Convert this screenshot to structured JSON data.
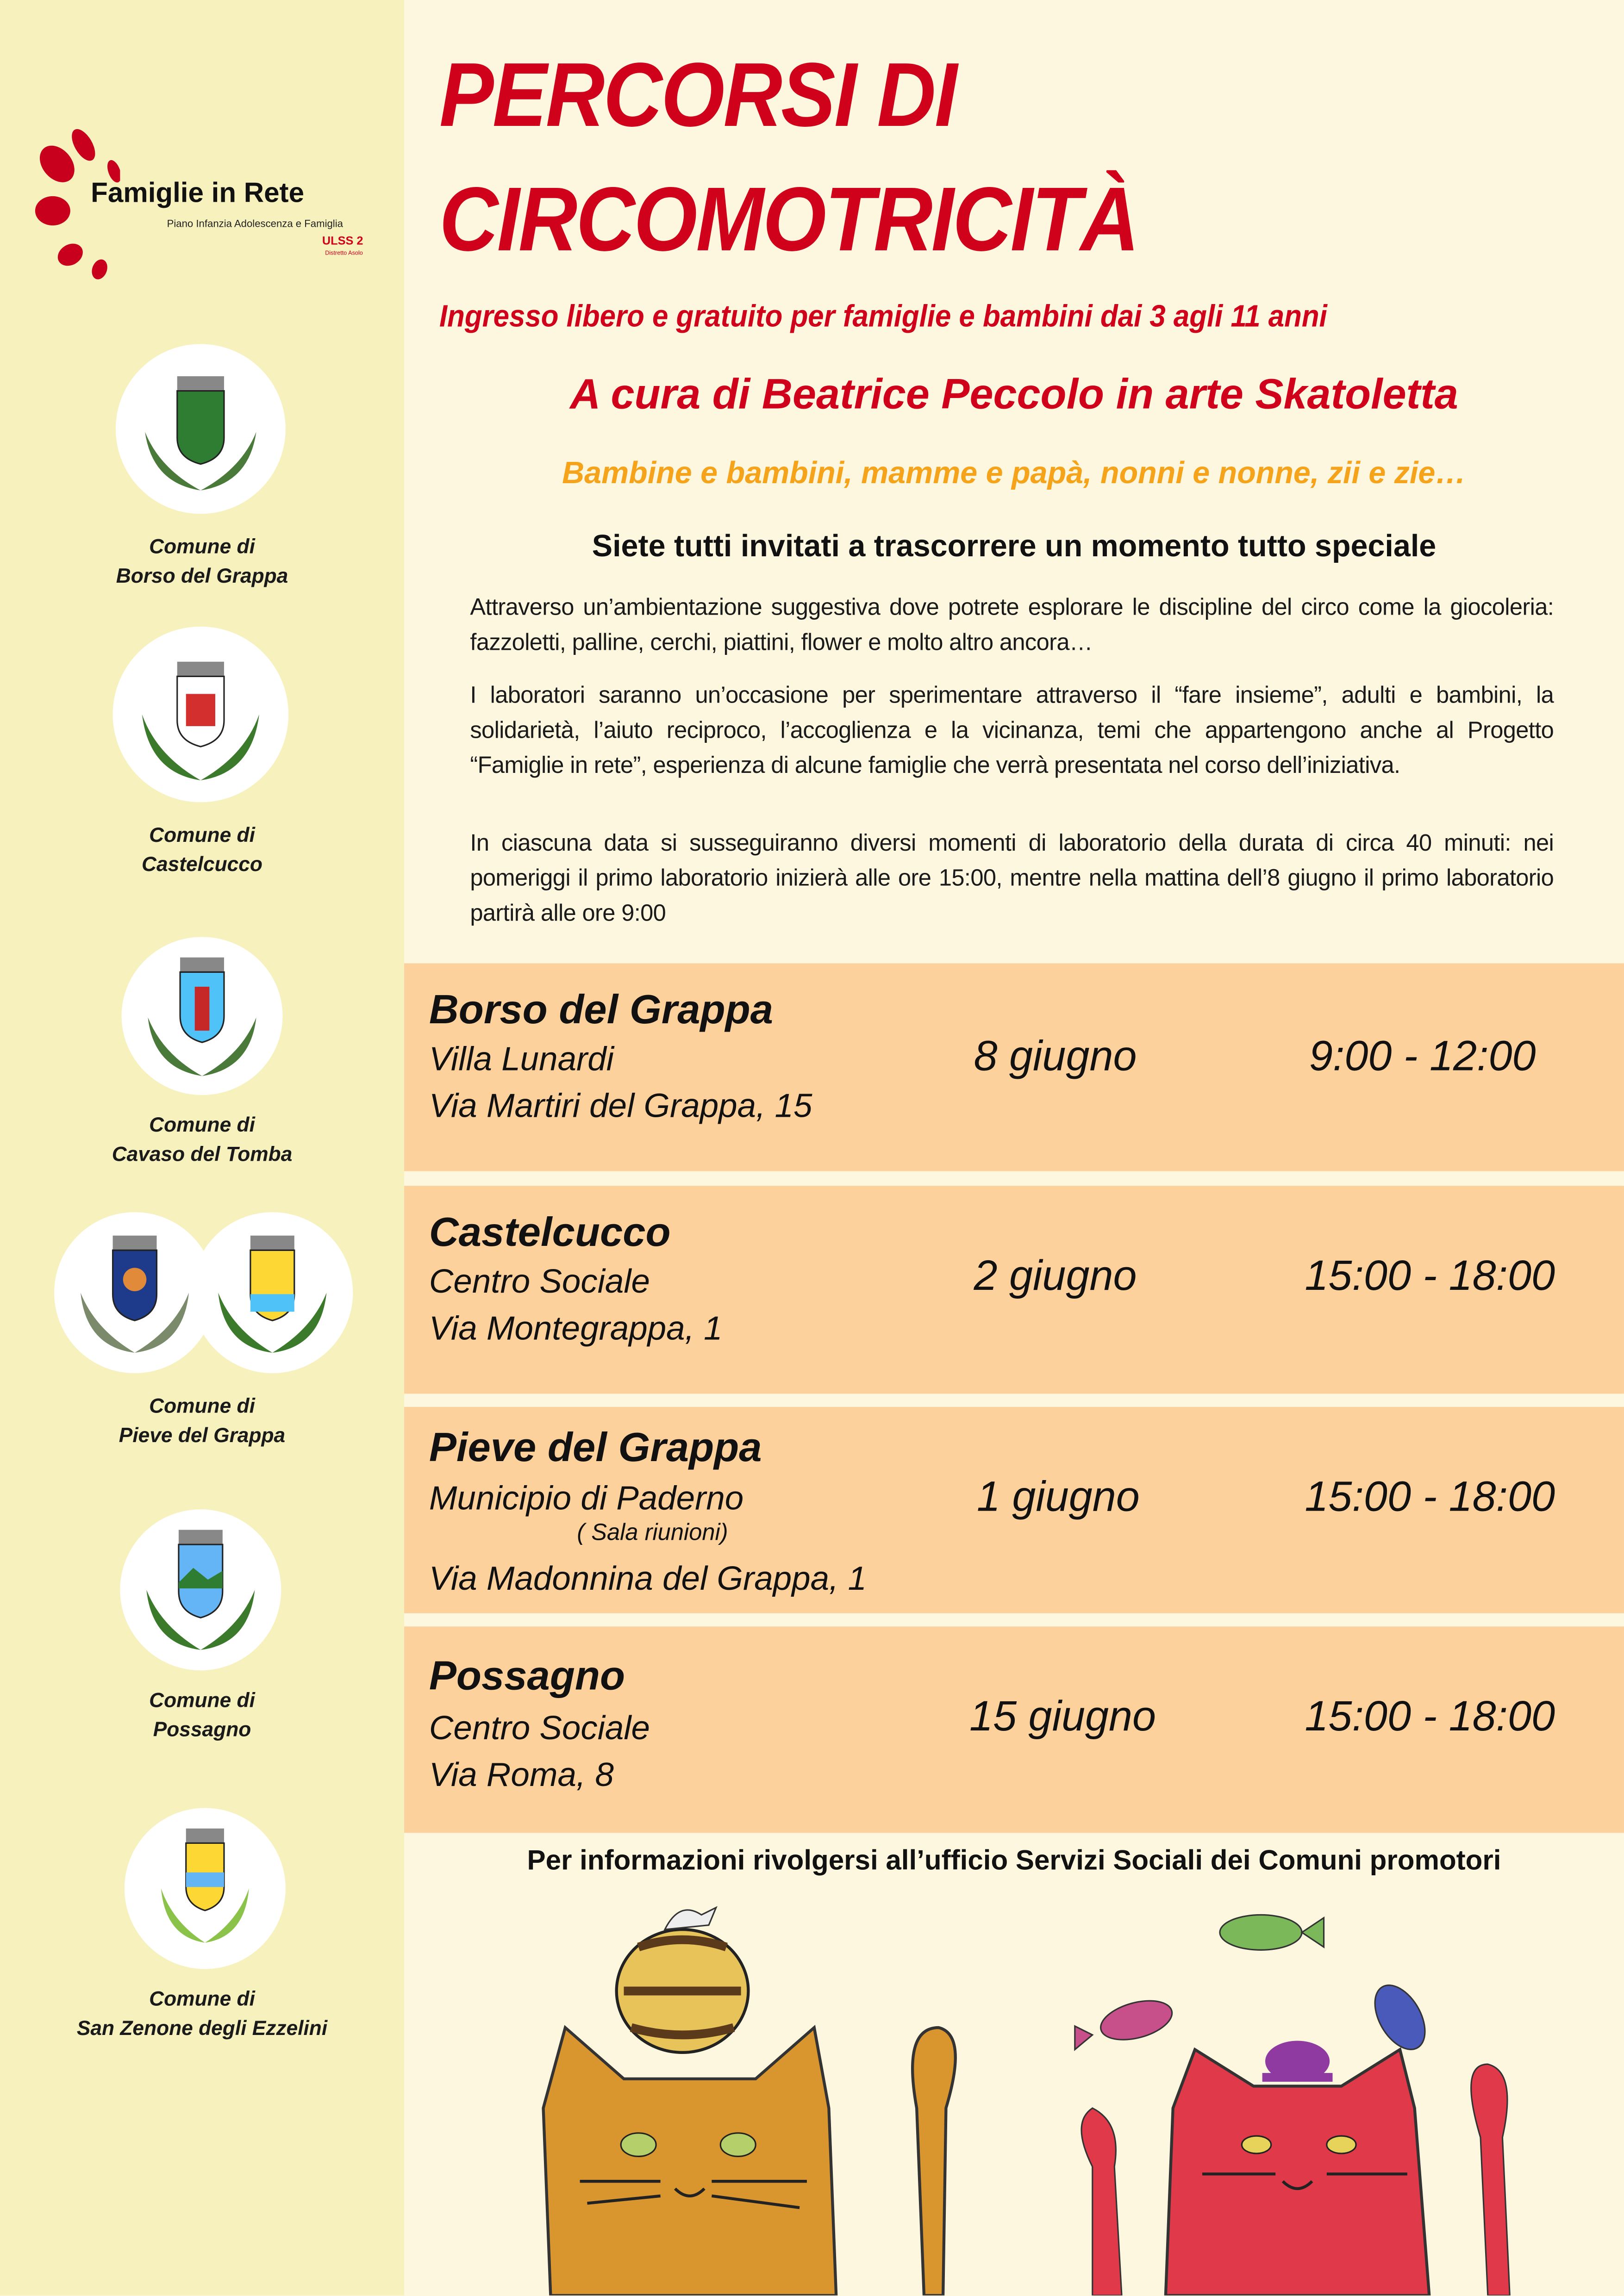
{
  "logo": {
    "name": "Famiglie in Rete",
    "tagline": "Piano Infanzia Adolescenza e Famiglia",
    "org": "ULSS 2",
    "district": "Distretto Asolo"
  },
  "municipalities": [
    {
      "label_prefix": "Comune di",
      "name": "Borso del Grappa"
    },
    {
      "label_prefix": "Comune di",
      "name": "Castelcucco"
    },
    {
      "label_prefix": "Comune di",
      "name": "Cavaso del Tomba"
    },
    {
      "label_prefix": "Comune di",
      "name": "Pieve del Grappa"
    },
    {
      "label_prefix": "Comune di",
      "name": "Possagno"
    },
    {
      "label_prefix": "Comune di",
      "name": "San Zenone degli Ezzelini"
    }
  ],
  "header": {
    "title_line1": "PERCORSI DI",
    "title_line2": "CIRCOMOTRICITÀ",
    "subtitle": "Ingresso libero e gratuito per famiglie e bambini dai 3 agli 11 anni",
    "curator": "A cura di Beatrice Peccolo in arte Skatoletta",
    "audience": "Bambine e bambini, mamme e papà, nonni e nonne, zii e zie…",
    "invite": "Siete tutti invitati a trascorrere un momento tutto speciale"
  },
  "paragraphs": [
    "Attraverso un’ambientazione suggestiva dove potrete esplorare le discipline del circo come la giocoleria: fazzoletti, palline, cerchi, piattini, flower e molto altro ancora…",
    "I laboratori saranno un’occasione per sperimentare attraverso il “fare insieme”, adulti e bambini, la solidarietà, l’aiuto reciproco, l’accoglienza e la vicinanza, temi che appartengono anche al Progetto “Famiglie in rete”, esperienza di alcune famiglie che verrà presentata nel corso dell’iniziativa.",
    "In ciascuna data si susseguiranno diversi momenti di laboratorio della durata di circa 40 minuti: nei pomeriggi il primo laboratorio inizierà alle ore 15:00, mentre nella mattina dell’8 giugno il primo laboratorio partirà alle ore 9:00"
  ],
  "events": [
    {
      "town": "Borso del Grappa",
      "venue": "Villa Lunardi",
      "note": "",
      "address": "Via Martiri del Grappa, 15",
      "date": "8 giugno",
      "time": "9:00 - 12:00"
    },
    {
      "town": "Castelcucco",
      "venue": "Centro Sociale",
      "note": "",
      "address": "Via Montegrappa, 1",
      "date": "2 giugno",
      "time": "15:00 - 18:00"
    },
    {
      "town": "Pieve del Grappa",
      "venue": "Municipio di Paderno",
      "note": "( Sala riunioni)",
      "address": "Via Madonnina del Grappa, 1",
      "date": "1 giugno",
      "time": "15:00 - 18:00"
    },
    {
      "town": "Possagno",
      "venue": "Centro Sociale",
      "note": "",
      "address": "Via Roma, 8",
      "date": "15 giugno",
      "time": "15:00 - 18:00"
    }
  ],
  "footer": {
    "info": "Per informazioni rivolgersi all’ufficio Servizi Sociali dei Comuni promotori"
  },
  "colors": {
    "title_red": "#d0021b",
    "audience_orange": "#f4a31a",
    "row_bg": "#fdd19c",
    "sidebar_bg": "#f7f1bd",
    "page_bg": "#fef7e0"
  }
}
